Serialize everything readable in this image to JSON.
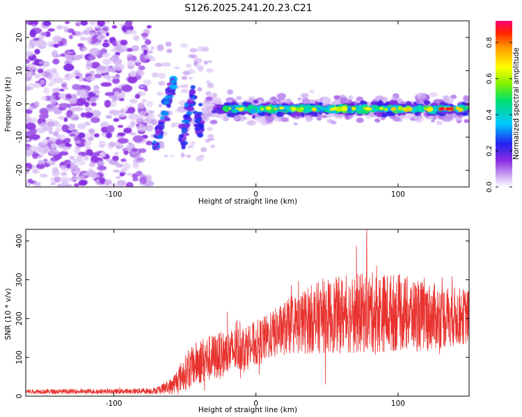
{
  "figure": {
    "title": "S126.2025.241.20.23.C21"
  },
  "chart_data": [
    {
      "type": "heatmap",
      "title": "S126.2025.241.20.23.C21",
      "xlabel": "Height of straight line (km)",
      "ylabel": "Frequency (Hz)",
      "xlim": [
        -162,
        150
      ],
      "ylim": [
        -25,
        25
      ],
      "x_ticks": [
        -100,
        0,
        100
      ],
      "x_tick_labels": [
        "-100",
        "0",
        "100"
      ],
      "y_ticks": [
        -20,
        -10,
        0,
        10,
        20
      ],
      "y_tick_labels": [
        "-20",
        "-10",
        "0",
        "10",
        "20"
      ],
      "grid": false,
      "colorbar": {
        "label": "Normalized spectral amplitude",
        "range": [
          0,
          0.92
        ],
        "ticks": [
          0,
          0.2,
          0.4,
          0.6,
          0.8
        ],
        "tick_labels": [
          "0.0",
          "0.2",
          "0.4",
          "0.6",
          "0.8"
        ],
        "colormap": "rainbow (white-violet-blue-cyan-green-yellow-orange-red)"
      },
      "features": {
        "diffuse_noise_region_km": [
          -162,
          -75
        ],
        "rising_linear_feature": {
          "x_km": [
            -72,
            -58
          ],
          "freq_hz": [
            -15,
            7
          ]
        },
        "steady_band": {
          "x_km": [
            -30,
            150
          ],
          "freq_hz": -1.5,
          "peak_amplitude_near_km": [
            130,
            138
          ]
        }
      }
    },
    {
      "type": "line",
      "xlabel": "Height of straight line (km)",
      "ylabel": "SNR (10 * v/v)",
      "xlim": [
        -162,
        150
      ],
      "ylim": [
        0,
        430
      ],
      "x_ticks": [
        -100,
        0,
        100
      ],
      "x_tick_labels": [
        "-100",
        "0",
        "100"
      ],
      "y_ticks": [
        0,
        100,
        200,
        300,
        400
      ],
      "y_tick_labels": [
        "0",
        "100",
        "200",
        "300",
        "400"
      ],
      "grid": false,
      "series": [
        {
          "name": "SNR",
          "color": "#e8322e",
          "envelope_x": [
            -162,
            -100,
            -70,
            -60,
            -50,
            -40,
            -30,
            -20,
            -10,
            0,
            10,
            20,
            40,
            60,
            80,
            100,
            120,
            150
          ],
          "envelope_mean": [
            12,
            12,
            14,
            25,
            60,
            90,
            100,
            110,
            125,
            135,
            155,
            175,
            200,
            210,
            215,
            215,
            205,
            205
          ],
          "envelope_spread": [
            6,
            6,
            8,
            20,
            45,
            60,
            60,
            60,
            60,
            60,
            60,
            70,
            90,
            100,
            105,
            100,
            90,
            70
          ],
          "notable_peak": {
            "x": 78,
            "y": 430
          }
        }
      ]
    }
  ]
}
